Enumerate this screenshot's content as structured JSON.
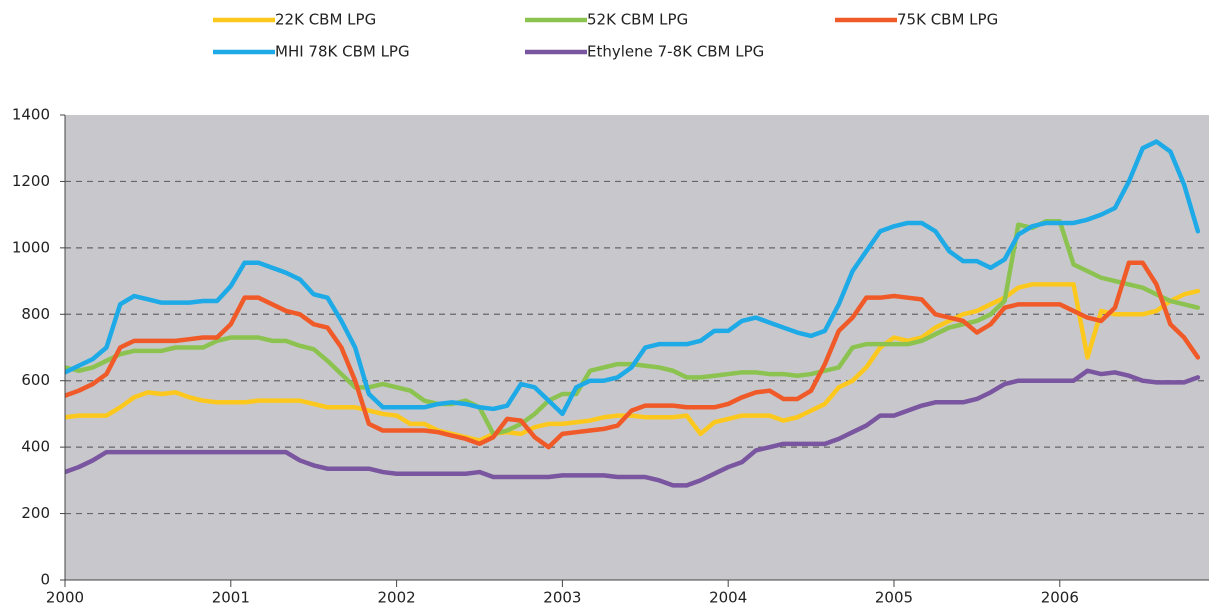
{
  "chart_data": {
    "type": "line",
    "x": [
      2000,
      2000.083,
      2000.167,
      2000.25,
      2000.333,
      2000.417,
      2000.5,
      2000.583,
      2000.667,
      2000.75,
      2000.833,
      2000.917,
      2001,
      2001.083,
      2001.167,
      2001.25,
      2001.333,
      2001.417,
      2001.5,
      2001.583,
      2001.667,
      2001.75,
      2001.833,
      2001.917,
      2002,
      2002.083,
      2002.167,
      2002.25,
      2002.333,
      2002.417,
      2002.5,
      2002.583,
      2002.667,
      2002.75,
      2002.833,
      2002.917,
      2003,
      2003.083,
      2003.167,
      2003.25,
      2003.333,
      2003.417,
      2003.5,
      2003.583,
      2003.667,
      2003.75,
      2003.833,
      2003.917,
      2004,
      2004.083,
      2004.167,
      2004.25,
      2004.333,
      2004.417,
      2004.5,
      2004.583,
      2004.667,
      2004.75,
      2004.833,
      2004.917,
      2005,
      2005.083,
      2005.167,
      2005.25,
      2005.333,
      2005.417,
      2005.5,
      2005.583,
      2005.667,
      2005.75,
      2005.833,
      2005.917,
      2006,
      2006.083,
      2006.167,
      2006.25,
      2006.333,
      2006.417,
      2006.5,
      2006.583,
      2006.667,
      2006.75,
      2006.833
    ],
    "series": [
      {
        "name": "22K CBM LPG",
        "color": "#fcc81e",
        "values": [
          490,
          495,
          495,
          495,
          520,
          550,
          565,
          560,
          565,
          550,
          540,
          535,
          535,
          535,
          540,
          540,
          540,
          540,
          530,
          520,
          520,
          520,
          510,
          500,
          495,
          470,
          470,
          450,
          440,
          430,
          420,
          440,
          445,
          440,
          460,
          470,
          470,
          475,
          480,
          490,
          495,
          495,
          490,
          490,
          490,
          495,
          440,
          475,
          485,
          495,
          495,
          495,
          480,
          490,
          510,
          530,
          580,
          600,
          640,
          700,
          730,
          720,
          730,
          760,
          780,
          800,
          810,
          830,
          850,
          880,
          890,
          890,
          890,
          890,
          670,
          810,
          800,
          800,
          800,
          810,
          840,
          860,
          870
        ]
      },
      {
        "name": "52K CBM LPG",
        "color": "#8cc350",
        "values": [
          640,
          630,
          640,
          660,
          680,
          690,
          690,
          690,
          700,
          700,
          700,
          720,
          730,
          730,
          730,
          720,
          720,
          705,
          695,
          660,
          620,
          580,
          580,
          590,
          580,
          570,
          540,
          530,
          530,
          540,
          520,
          440,
          450,
          470,
          500,
          540,
          560,
          560,
          630,
          640,
          650,
          650,
          645,
          640,
          630,
          610,
          610,
          615,
          620,
          625,
          625,
          620,
          620,
          615,
          620,
          630,
          640,
          700,
          710,
          710,
          710,
          710,
          720,
          740,
          760,
          770,
          780,
          800,
          840,
          1070,
          1060,
          1080,
          1080,
          950,
          930,
          910,
          900,
          890,
          880,
          860,
          840,
          830,
          820
        ]
      },
      {
        "name": "75K CBM LPG",
        "color": "#f05a28",
        "values": [
          555,
          570,
          590,
          620,
          700,
          720,
          720,
          720,
          720,
          725,
          730,
          730,
          770,
          850,
          850,
          830,
          810,
          800,
          770,
          760,
          700,
          600,
          470,
          450,
          450,
          450,
          450,
          445,
          435,
          425,
          410,
          430,
          485,
          480,
          430,
          400,
          440,
          445,
          450,
          455,
          465,
          510,
          525,
          525,
          525,
          520,
          520,
          520,
          530,
          550,
          565,
          570,
          545,
          545,
          570,
          650,
          750,
          790,
          850,
          850,
          855,
          850,
          845,
          800,
          790,
          780,
          745,
          770,
          820,
          830,
          830,
          830,
          830,
          810,
          790,
          780,
          820,
          955,
          955,
          890,
          770,
          730,
          670
        ]
      },
      {
        "name": "MHI 78K CBM LPG",
        "color": "#1eaae6",
        "values": [
          625,
          645,
          665,
          700,
          830,
          855,
          845,
          835,
          835,
          835,
          840,
          840,
          885,
          955,
          955,
          940,
          925,
          905,
          860,
          850,
          780,
          700,
          560,
          520,
          520,
          520,
          520,
          530,
          535,
          530,
          520,
          515,
          525,
          590,
          580,
          540,
          500,
          580,
          600,
          600,
          610,
          640,
          700,
          710,
          710,
          710,
          720,
          750,
          750,
          780,
          790,
          775,
          760,
          745,
          735,
          750,
          830,
          930,
          990,
          1050,
          1065,
          1075,
          1075,
          1050,
          990,
          960,
          960,
          940,
          965,
          1040,
          1065,
          1075,
          1075,
          1075,
          1085,
          1100,
          1120,
          1200,
          1300,
          1320,
          1290,
          1190,
          1050
        ]
      },
      {
        "name": "Ethylene 7-8K CBM LPG",
        "color": "#7a55a0",
        "values": [
          325,
          340,
          360,
          385,
          385,
          385,
          385,
          385,
          385,
          385,
          385,
          385,
          385,
          385,
          385,
          385,
          385,
          360,
          345,
          335,
          335,
          335,
          335,
          325,
          320,
          320,
          320,
          320,
          320,
          320,
          325,
          310,
          310,
          310,
          310,
          310,
          315,
          315,
          315,
          315,
          310,
          310,
          310,
          300,
          285,
          285,
          300,
          320,
          340,
          355,
          390,
          400,
          410,
          410,
          410,
          410,
          425,
          445,
          465,
          495,
          495,
          510,
          525,
          535,
          535,
          535,
          545,
          565,
          590,
          600,
          600,
          600,
          600,
          600,
          630,
          620,
          625,
          615,
          600,
          595,
          595,
          595,
          610
        ]
      }
    ],
    "xlim": [
      2000,
      2006.9
    ],
    "xticks": [
      2000,
      2001,
      2002,
      2003,
      2004,
      2005,
      2006
    ],
    "ylim": [
      0,
      1400
    ],
    "yticks": [
      0,
      200,
      400,
      600,
      800,
      1000,
      1200,
      1400
    ],
    "grid": true
  }
}
